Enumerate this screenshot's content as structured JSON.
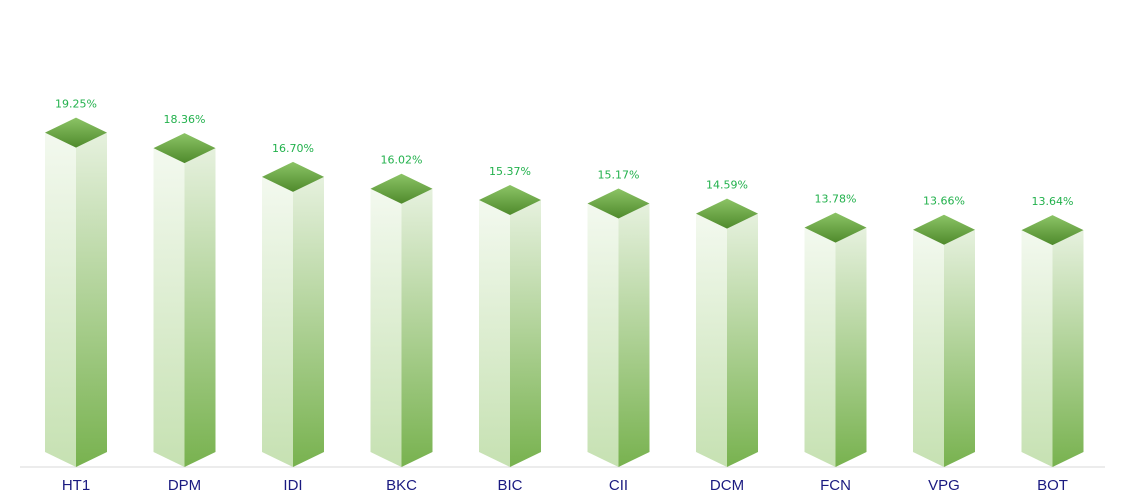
{
  "chart_data": {
    "type": "bar",
    "style": "3d-isometric-column",
    "categories": [
      "HT1",
      "DPM",
      "IDI",
      "BKC",
      "BIC",
      "CII",
      "DCM",
      "FCN",
      "VPG",
      "BOT"
    ],
    "values": [
      19.25,
      18.36,
      16.7,
      16.02,
      15.37,
      15.17,
      14.59,
      13.78,
      13.66,
      13.64
    ],
    "data_labels": [
      "19.25%",
      "18.36%",
      "16.70%",
      "16.02%",
      "15.37%",
      "15.17%",
      "14.59%",
      "13.78%",
      "13.66%",
      "13.64%"
    ],
    "ylim": [
      0,
      26
    ],
    "grid": false,
    "colors": {
      "bar_top": "#6aaa45",
      "bar_dark": "#7ab451",
      "bar_light": "#eef6e8",
      "label": "#22b14c",
      "category": "#1a1a80",
      "axis": "#d9d9d9"
    }
  }
}
